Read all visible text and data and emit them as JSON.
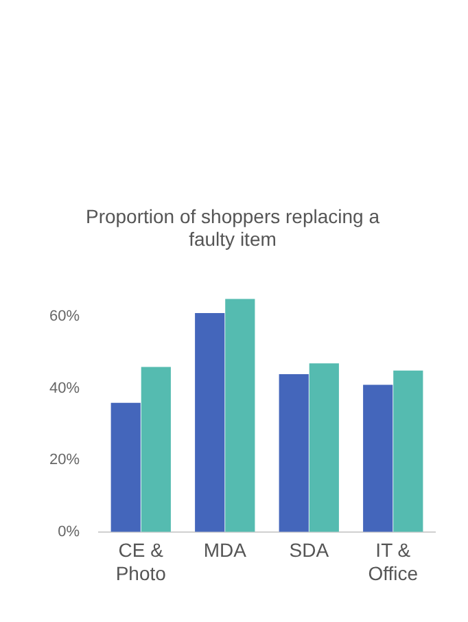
{
  "chart_data": {
    "type": "bar",
    "title": "Proportion of shoppers replacing a faulty item",
    "categories": [
      "CE & Photo",
      "MDA",
      "SDA",
      "IT & Office"
    ],
    "series": [
      {
        "color": "#4466bb",
        "values": [
          36,
          61,
          44,
          41
        ]
      },
      {
        "color": "#55bbb0",
        "values": [
          46,
          65,
          47,
          45
        ]
      }
    ],
    "ylim": [
      0,
      65
    ],
    "yticks": [
      {
        "value": 0,
        "label": "0%"
      },
      {
        "value": 20,
        "label": "20%"
      },
      {
        "value": 40,
        "label": "40%"
      },
      {
        "value": 60,
        "label": "60%"
      }
    ],
    "grid": false,
    "legend": false
  }
}
